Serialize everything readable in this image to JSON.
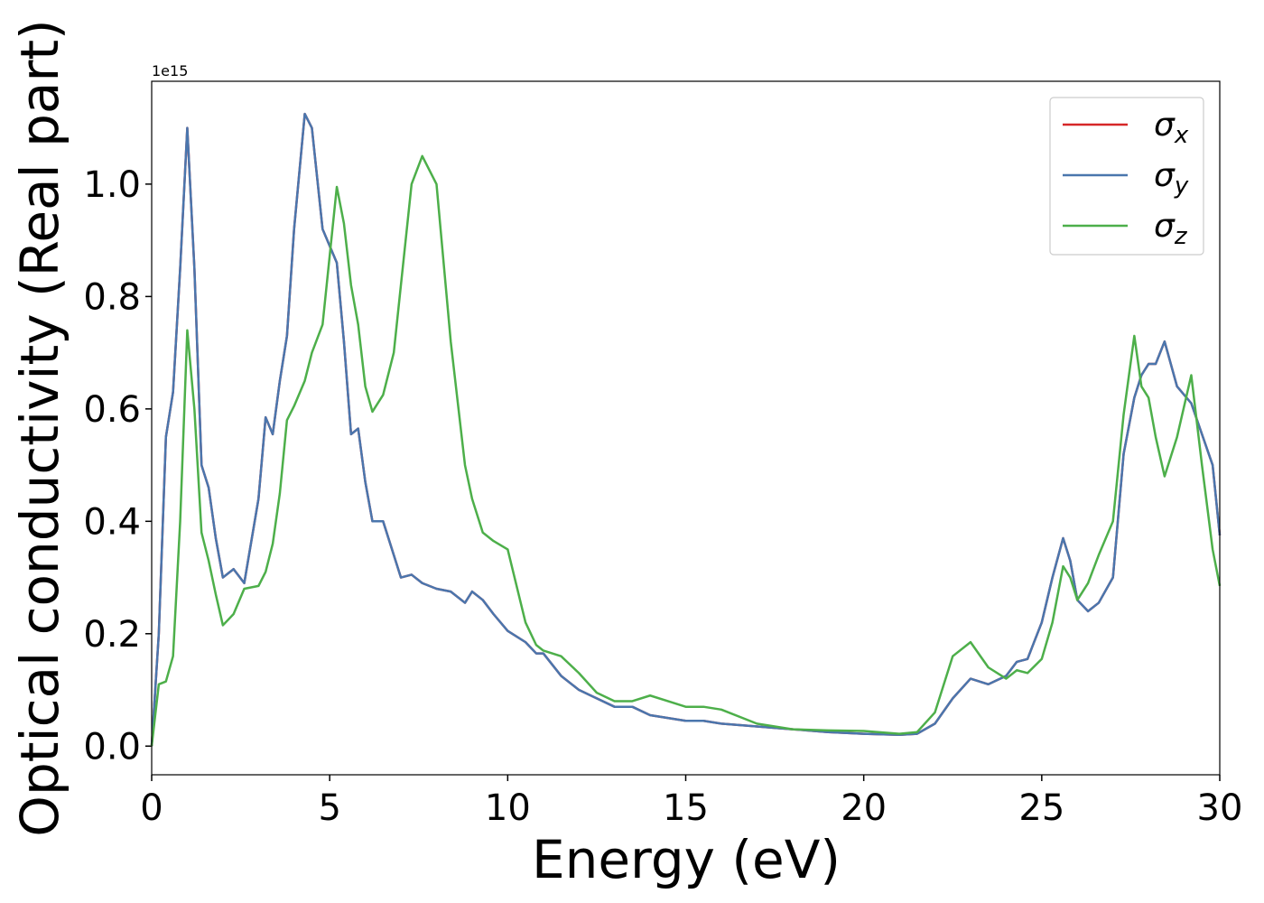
{
  "chart_data": {
    "type": "line",
    "xlabel": "Energy (eV)",
    "ylabel": "Optical conductivity (Real part)",
    "offset_label": "1e15",
    "xlim": [
      0,
      30
    ],
    "xticks": [
      0,
      5,
      10,
      15,
      20,
      25,
      30
    ],
    "ylim": [
      -0.051,
      1.183
    ],
    "yticks": [
      {
        "value": 0,
        "label": "0.0"
      },
      0.2,
      0.4,
      0.6,
      0.8,
      {
        "value": 1,
        "label": "1.0"
      }
    ],
    "legend": "upper right",
    "x": [
      0,
      0.2,
      0.4,
      0.6,
      0.8,
      1.0,
      1.2,
      1.4,
      1.6,
      1.8,
      2.0,
      2.3,
      2.6,
      3.0,
      3.2,
      3.4,
      3.6,
      3.8,
      4.0,
      4.3,
      4.5,
      4.8,
      5.2,
      5.4,
      5.6,
      5.8,
      6.0,
      6.2,
      6.5,
      6.8,
      7.0,
      7.3,
      7.6,
      8.0,
      8.4,
      8.8,
      9.0,
      9.3,
      9.6,
      10.0,
      10.5,
      10.8,
      11.0,
      11.5,
      12.0,
      12.5,
      13.0,
      13.5,
      14.0,
      14.5,
      15.0,
      15.5,
      16,
      17,
      18,
      19,
      20,
      21,
      21.5,
      22,
      22.5,
      23,
      23.5,
      24,
      24.3,
      24.6,
      25,
      25.3,
      25.6,
      25.8,
      26,
      26.3,
      26.6,
      27,
      27.3,
      27.6,
      27.8,
      28.0,
      28.2,
      28.45,
      28.8,
      29.2,
      29.5,
      29.8,
      30
    ],
    "series": [
      {
        "name": "σx",
        "color": "#d62728",
        "values": [
          0,
          0.2,
          0.55,
          0.63,
          0.85,
          1.1,
          0.85,
          0.5,
          0.46,
          0.37,
          0.3,
          0.315,
          0.29,
          0.44,
          0.585,
          0.555,
          0.65,
          0.73,
          0.92,
          1.125,
          1.1,
          0.92,
          0.86,
          0.72,
          0.555,
          0.565,
          0.47,
          0.4,
          0.4,
          0.34,
          0.3,
          0.305,
          0.29,
          0.28,
          0.275,
          0.255,
          0.275,
          0.26,
          0.235,
          0.205,
          0.185,
          0.165,
          0.165,
          0.125,
          0.1,
          0.085,
          0.07,
          0.07,
          0.055,
          0.05,
          0.045,
          0.045,
          0.04,
          0.035,
          0.03,
          0.025,
          0.022,
          0.02,
          0.022,
          0.04,
          0.085,
          0.12,
          0.11,
          0.125,
          0.15,
          0.155,
          0.22,
          0.3,
          0.37,
          0.33,
          0.26,
          0.24,
          0.255,
          0.3,
          0.52,
          0.62,
          0.66,
          0.68,
          0.68,
          0.72,
          0.64,
          0.61,
          0.555,
          0.5,
          0.375
        ]
      },
      {
        "name": "σy",
        "color": "#4a76ad",
        "values": [
          0,
          0.2,
          0.55,
          0.63,
          0.85,
          1.1,
          0.85,
          0.5,
          0.46,
          0.37,
          0.3,
          0.315,
          0.29,
          0.44,
          0.585,
          0.555,
          0.65,
          0.73,
          0.92,
          1.125,
          1.1,
          0.92,
          0.86,
          0.72,
          0.555,
          0.565,
          0.47,
          0.4,
          0.4,
          0.34,
          0.3,
          0.305,
          0.29,
          0.28,
          0.275,
          0.255,
          0.275,
          0.26,
          0.235,
          0.205,
          0.185,
          0.165,
          0.165,
          0.125,
          0.1,
          0.085,
          0.07,
          0.07,
          0.055,
          0.05,
          0.045,
          0.045,
          0.04,
          0.035,
          0.03,
          0.025,
          0.022,
          0.02,
          0.022,
          0.04,
          0.085,
          0.12,
          0.11,
          0.125,
          0.15,
          0.155,
          0.22,
          0.3,
          0.37,
          0.33,
          0.26,
          0.24,
          0.255,
          0.3,
          0.52,
          0.62,
          0.66,
          0.68,
          0.68,
          0.72,
          0.64,
          0.61,
          0.555,
          0.5,
          0.375
        ]
      },
      {
        "name": "σz",
        "color": "#4daf4a",
        "values": [
          0,
          0.11,
          0.115,
          0.16,
          0.4,
          0.74,
          0.6,
          0.38,
          0.33,
          0.27,
          0.215,
          0.235,
          0.28,
          0.285,
          0.31,
          0.36,
          0.45,
          0.58,
          0.605,
          0.65,
          0.7,
          0.75,
          0.995,
          0.93,
          0.82,
          0.75,
          0.64,
          0.595,
          0.625,
          0.7,
          0.82,
          1.0,
          1.05,
          1.0,
          0.72,
          0.5,
          0.44,
          0.38,
          0.365,
          0.35,
          0.22,
          0.18,
          0.17,
          0.16,
          0.13,
          0.095,
          0.08,
          0.08,
          0.09,
          0.08,
          0.07,
          0.07,
          0.065,
          0.04,
          0.03,
          0.028,
          0.027,
          0.022,
          0.025,
          0.06,
          0.16,
          0.185,
          0.14,
          0.12,
          0.135,
          0.13,
          0.155,
          0.22,
          0.32,
          0.3,
          0.26,
          0.29,
          0.34,
          0.4,
          0.59,
          0.73,
          0.64,
          0.62,
          0.55,
          0.48,
          0.55,
          0.66,
          0.5,
          0.35,
          0.285
        ]
      }
    ]
  }
}
